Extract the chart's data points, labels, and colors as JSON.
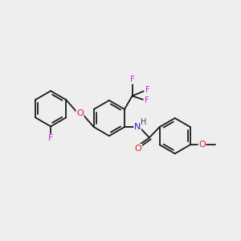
{
  "bg": "#eeeeee",
  "bond_color": "#1a1a1a",
  "lw": 1.3,
  "atom_colors": {
    "F": "#cc22cc",
    "O": "#dd2222",
    "N": "#2222cc",
    "C": "#1a1a1a",
    "H": "#444444"
  },
  "fs_main": 8.0,
  "fs_small": 7.0,
  "ring_r": 0.75
}
